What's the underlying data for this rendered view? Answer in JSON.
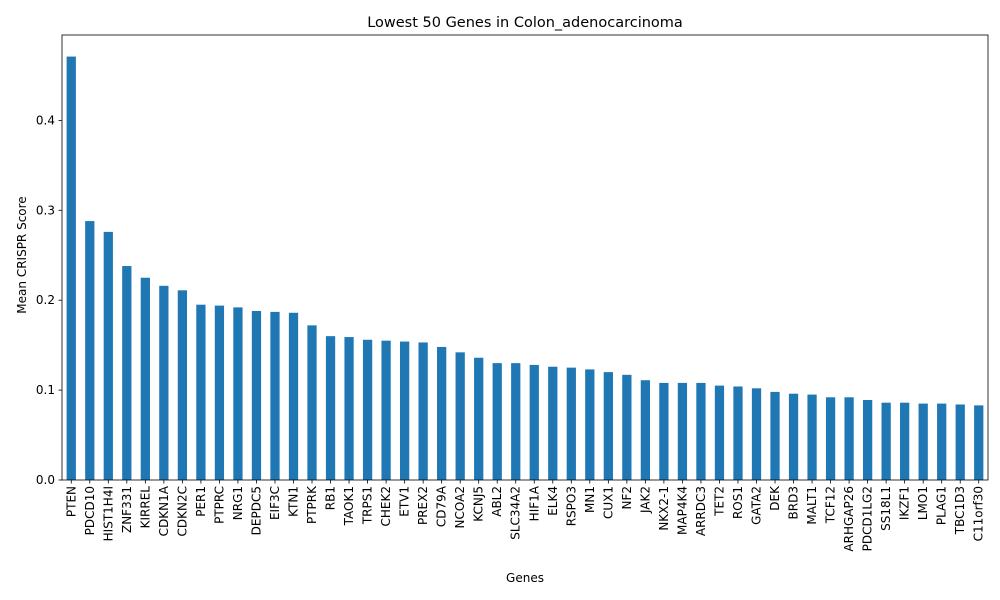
{
  "chart_data": {
    "type": "bar",
    "title": "Lowest 50 Genes in Colon_adenocarcinoma",
    "xlabel": "Genes",
    "ylabel": "Mean CRISPR Score",
    "ylim": [
      0,
      0.495
    ],
    "yticks": [
      0.0,
      0.1,
      0.2,
      0.3,
      0.4
    ],
    "ytick_labels": [
      "0.0",
      "0.1",
      "0.2",
      "0.3",
      "0.4"
    ],
    "grid": false,
    "bar_color": "#1f77b4",
    "categories": [
      "PTEN",
      "PDCD10",
      "HIST1H4I",
      "ZNF331",
      "KIRREL",
      "CDKN1A",
      "CDKN2C",
      "PER1",
      "PTPRC",
      "NRG1",
      "DEPDC5",
      "EIF3C",
      "KTN1",
      "PTPRK",
      "RB1",
      "TAOK1",
      "TRPS1",
      "CHEK2",
      "ETV1",
      "PREX2",
      "CD79A",
      "NCOA2",
      "KCNJ5",
      "ABL2",
      "SLC34A2",
      "HIF1A",
      "ELK4",
      "RSPO3",
      "MN1",
      "CUX1",
      "NF2",
      "JAK2",
      "NKX2-1",
      "MAP4K4",
      "ARRDC3",
      "TET2",
      "ROS1",
      "GATA2",
      "DEK",
      "BRD3",
      "MALT1",
      "TCF12",
      "ARHGAP26",
      "PDCD1LG2",
      "SS18L1",
      "IKZF1",
      "LMO1",
      "PLAG1",
      "TBC1D3",
      "C11orf30"
    ],
    "values": [
      0.471,
      0.288,
      0.276,
      0.238,
      0.225,
      0.216,
      0.211,
      0.195,
      0.194,
      0.192,
      0.188,
      0.187,
      0.186,
      0.172,
      0.16,
      0.159,
      0.156,
      0.155,
      0.154,
      0.153,
      0.148,
      0.142,
      0.136,
      0.13,
      0.13,
      0.128,
      0.126,
      0.125,
      0.123,
      0.12,
      0.117,
      0.111,
      0.108,
      0.108,
      0.108,
      0.105,
      0.104,
      0.102,
      0.098,
      0.096,
      0.095,
      0.092,
      0.092,
      0.089,
      0.086,
      0.086,
      0.085,
      0.085,
      0.084,
      0.083
    ]
  }
}
